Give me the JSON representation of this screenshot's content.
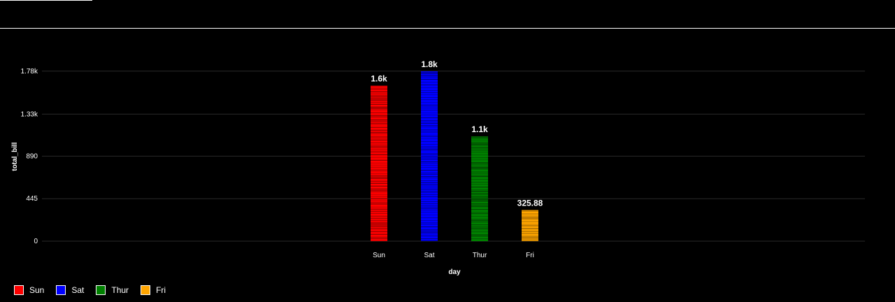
{
  "chart_data": {
    "type": "bar",
    "categories": [
      "Sun",
      "Sat",
      "Thur",
      "Fri"
    ],
    "values": [
      1627.16,
      1778.4,
      1096.33,
      325.88
    ],
    "data_labels": [
      "1.6k",
      "1.8k",
      "1.1k",
      "325.88"
    ],
    "colors": [
      "#ff0000",
      "#0000ff",
      "#008000",
      "#ffa500"
    ],
    "xlabel": "day",
    "ylabel": "total_bill",
    "ylim": [
      0,
      1778.4
    ],
    "yticks": [
      0,
      445,
      890,
      1330,
      1780
    ],
    "ytick_labels": [
      "0",
      "445",
      "890",
      "1.33k",
      "1.78k"
    ],
    "grid": true,
    "legend_position": "bottom-left",
    "legend": [
      {
        "label": "Sun",
        "color": "#ff0000"
      },
      {
        "label": "Sat",
        "color": "#0000ff"
      },
      {
        "label": "Thur",
        "color": "#008000"
      },
      {
        "label": "Fri",
        "color": "#ffa500"
      }
    ]
  }
}
